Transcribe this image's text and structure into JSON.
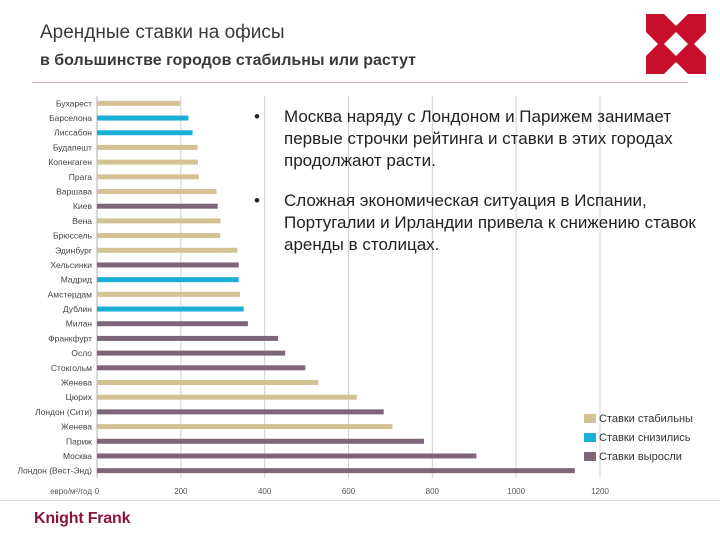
{
  "header": {
    "title": "Арендные ставки на офисы",
    "subtitle": "в большинстве городов стабильны или растут"
  },
  "bullets": [
    "Москва наряду с Лондоном и Парижем занимает первые строчки рейтинга и ставки в этих городах продолжают расти.",
    "Сложная экономическая ситуация в Испании, Португалии и Ирландии привела к снижению ставок аренды в столицах."
  ],
  "bullet_symbol": "•",
  "brand": "Knight Frank",
  "colors": {
    "stable": "#d4c295",
    "decreased": "#1ab0d6",
    "increased": "#7e6678",
    "brand": "#8a1538"
  },
  "chart_data": {
    "type": "bar",
    "orientation": "horizontal",
    "unit_label": "евро/м²/год",
    "xlim": [
      0,
      1200
    ],
    "xticks": [
      0,
      200,
      400,
      600,
      800,
      1000,
      1200
    ],
    "grid": true,
    "categories": [
      "Бухарест",
      "Барселона",
      "Лиссабон",
      "Будапешт",
      "Копенгаген",
      "Прага",
      "Варшава",
      "Киев",
      "Вена",
      "Брюссель",
      "Эдинбург",
      "Хельсинки",
      "Мадрид",
      "Амстердам",
      "Дублин",
      "Милан",
      "Франкфурт",
      "Осло",
      "Стокгольм",
      "Женева",
      "Цюрих",
      "Лондон (Сити)",
      "Женева",
      "Париж",
      "Москва",
      "Лондон (Вест-Энд)"
    ],
    "values": [
      198,
      218,
      228,
      240,
      241,
      243,
      285,
      288,
      295,
      294,
      335,
      338,
      338,
      341,
      350,
      360,
      432,
      449,
      497,
      528,
      620,
      684,
      705,
      780,
      905,
      1140
    ],
    "status": [
      "stable",
      "decreased",
      "decreased",
      "stable",
      "stable",
      "stable",
      "stable",
      "increased",
      "stable",
      "stable",
      "stable",
      "increased",
      "decreased",
      "stable",
      "decreased",
      "increased",
      "increased",
      "increased",
      "increased",
      "stable",
      "stable",
      "increased",
      "stable",
      "increased",
      "increased",
      "increased"
    ],
    "legend": [
      {
        "key": "stable",
        "label": "Ставки стабильны"
      },
      {
        "key": "decreased",
        "label": "Ставки снизились"
      },
      {
        "key": "increased",
        "label": "Ставки выросли"
      }
    ],
    "legend_position": "bottom-right"
  }
}
